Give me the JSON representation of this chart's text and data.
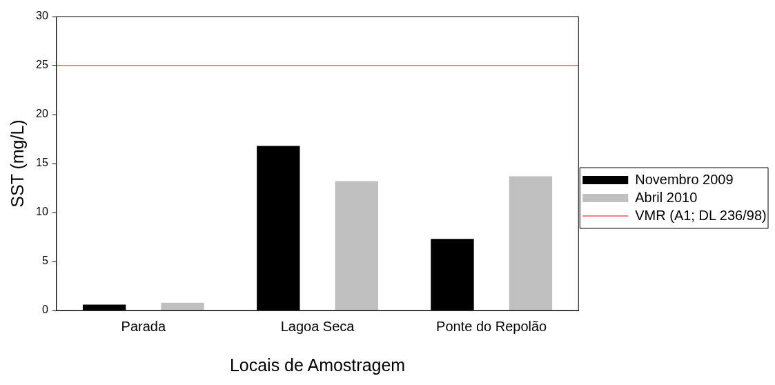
{
  "chart_data": {
    "type": "bar",
    "xlabel": "Locais de Amostragem",
    "ylabel": "SST (mg/L)",
    "categories": [
      "Parada",
      "Lagoa Seca",
      "Ponte do Repolão"
    ],
    "series": [
      {
        "name": "Novembro 2009",
        "color": "#000000",
        "values": [
          0.6,
          16.8,
          7.3
        ]
      },
      {
        "name": "Abril 2010",
        "color": "#c0c0c0",
        "values": [
          0.8,
          13.2,
          13.7
        ]
      }
    ],
    "ylim": [
      0,
      30
    ],
    "yticks": [
      0,
      5,
      10,
      15,
      20,
      25,
      30
    ],
    "grid": false,
    "legend": "right",
    "ref_lines": [
      {
        "axis": "y",
        "value": 25,
        "label": "VMR (A1; DL 236/98)",
        "color": "#ff0000",
        "line_style": "solid"
      }
    ]
  }
}
